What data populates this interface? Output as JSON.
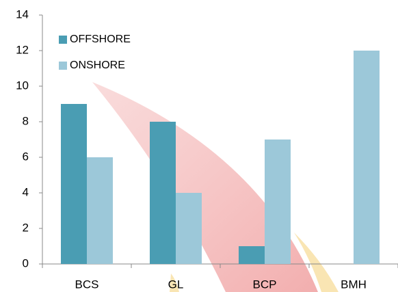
{
  "chart_data": {
    "type": "bar",
    "categories": [
      "BCS",
      "GL",
      "BCP",
      "BMH"
    ],
    "series": [
      {
        "name": "OFFSHORE",
        "color": "#4a9db3",
        "values": [
          9,
          8,
          1,
          null
        ]
      },
      {
        "name": "ONSHORE",
        "color": "#9cc8d9",
        "values": [
          6,
          4,
          7,
          12
        ]
      }
    ],
    "ylim": [
      0,
      14
    ],
    "yticks": [
      0,
      2,
      4,
      6,
      8,
      10,
      12,
      14
    ],
    "grid": false,
    "legend": "top-left"
  }
}
